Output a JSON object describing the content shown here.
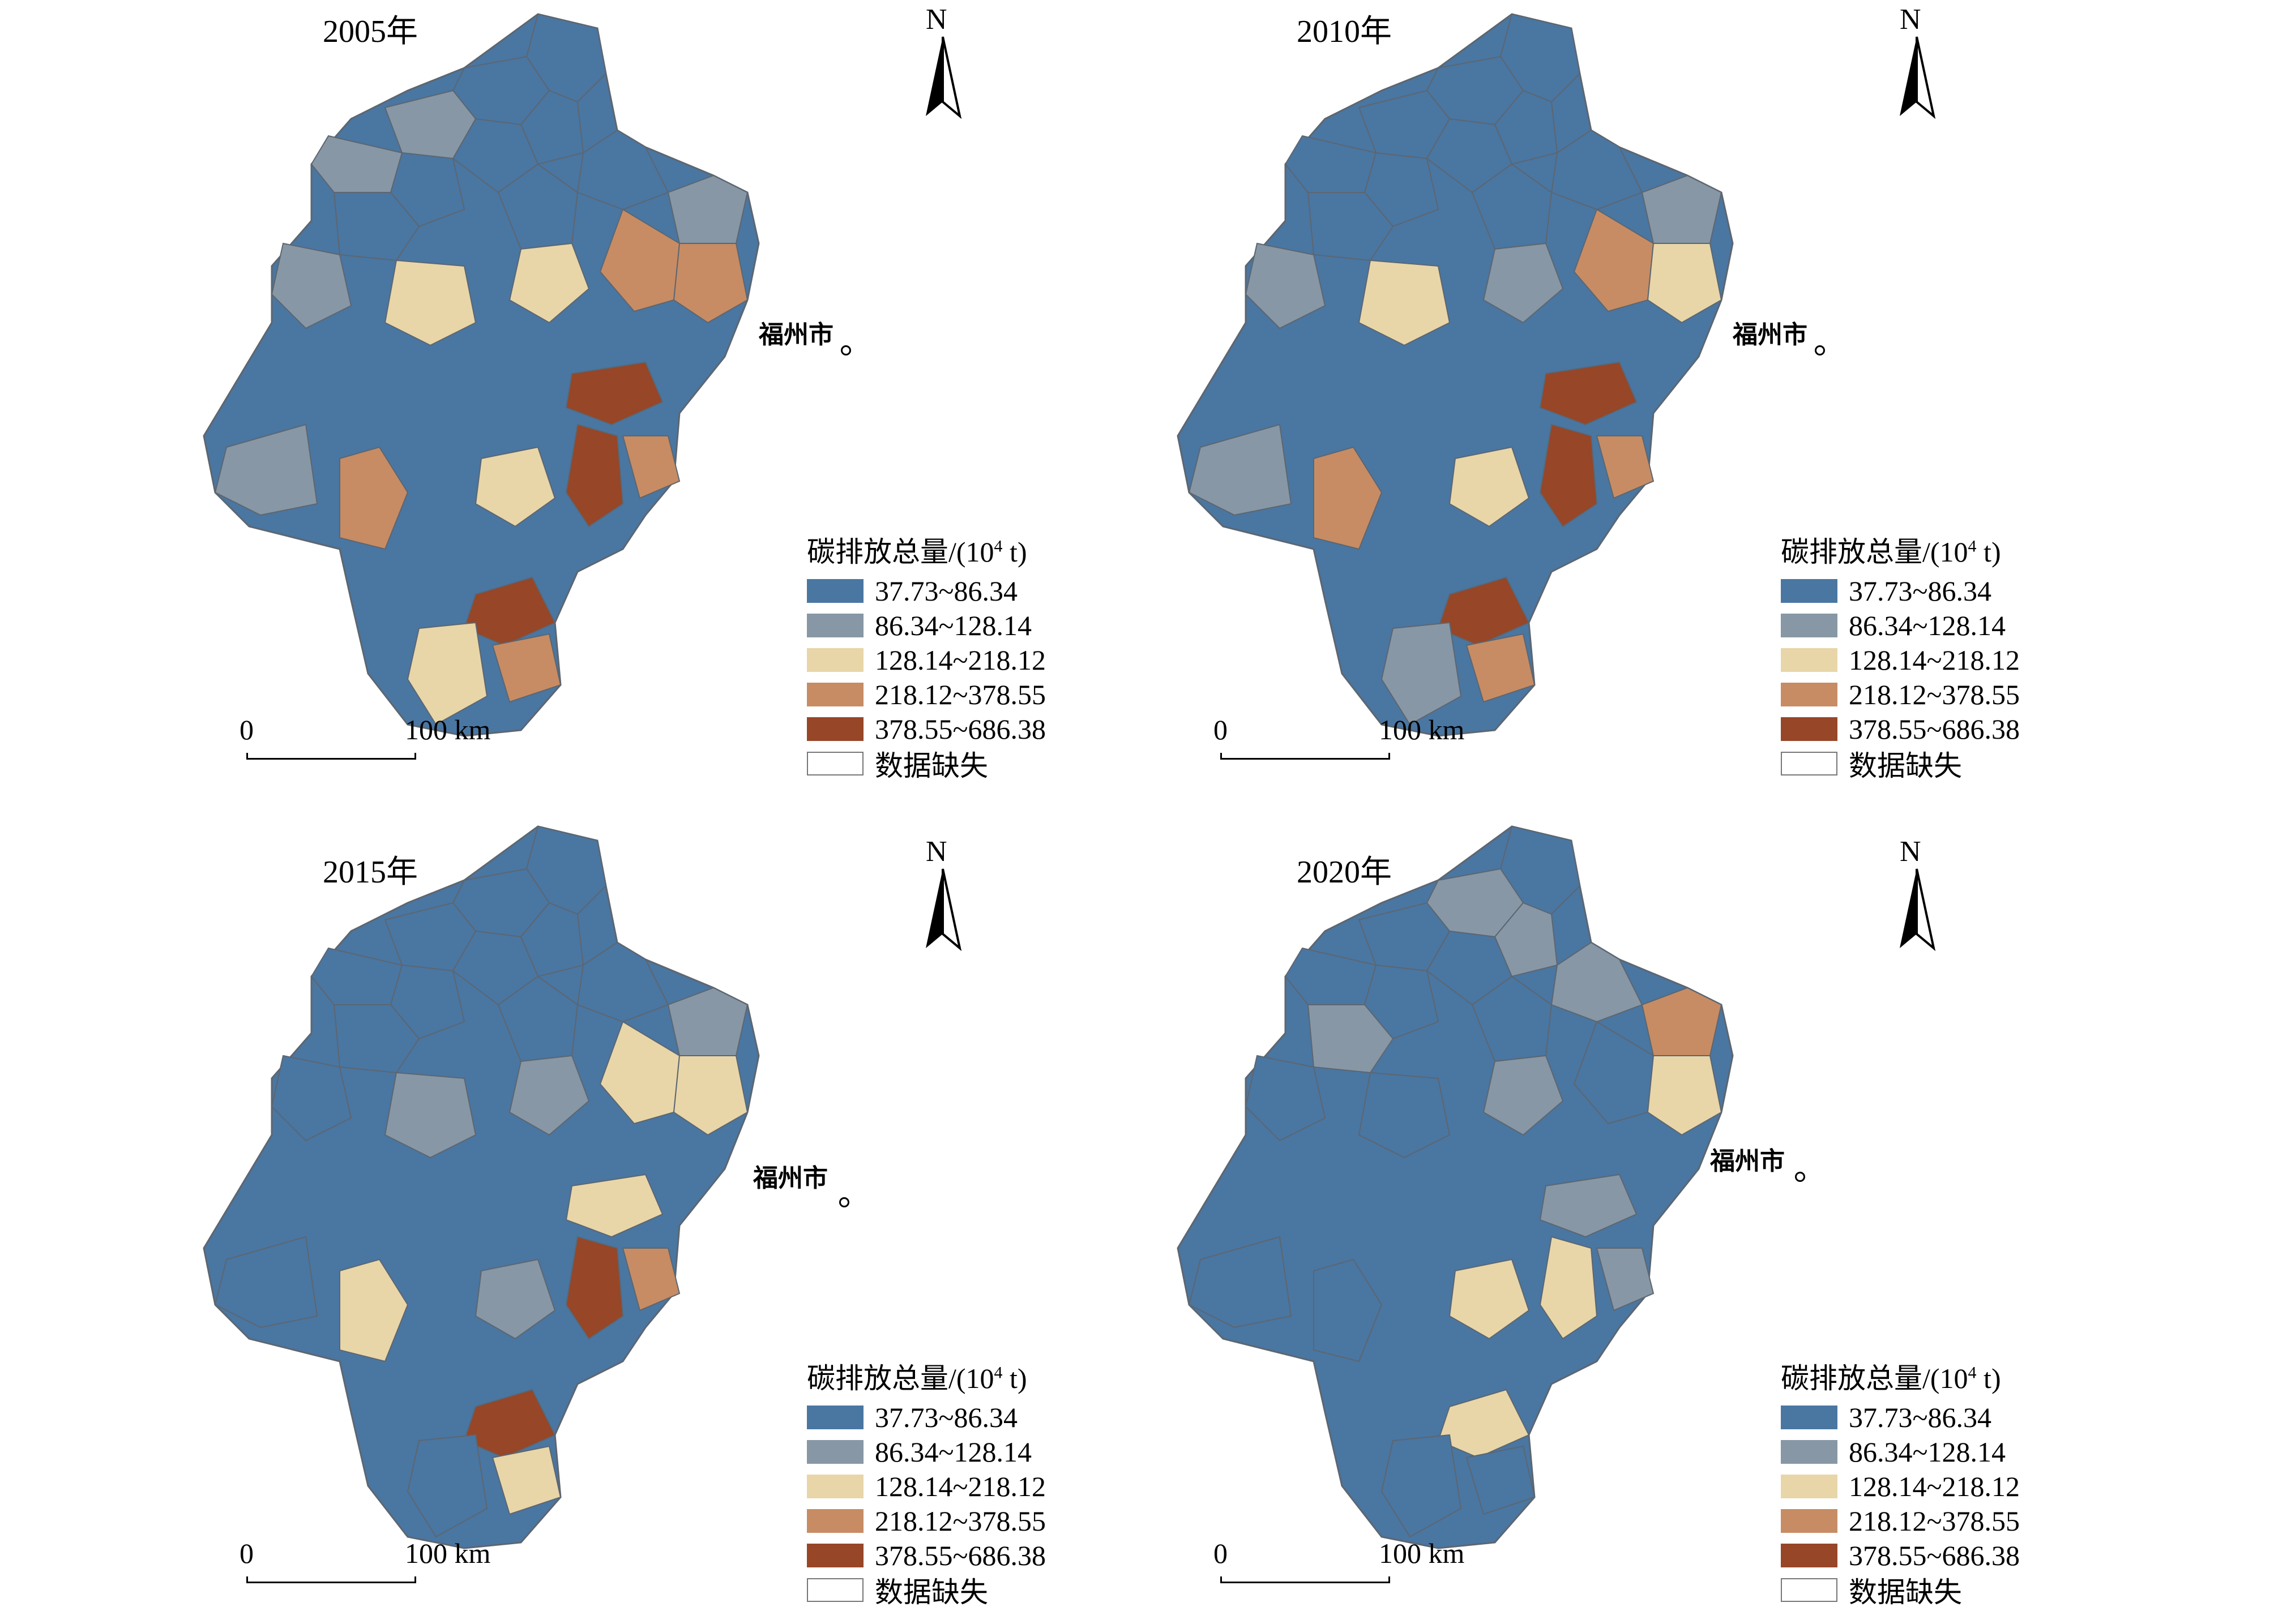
{
  "colors": {
    "class1": "#4a76a2",
    "class2": "#8797a5",
    "class3": "#e8d6a9",
    "class4": "#c78c64",
    "class5": "#974627",
    "missing": "#ffffff",
    "border": "#5c6670"
  },
  "panels": [
    {
      "year_label": "2005年",
      "north_label": "N",
      "city_label": "福州市",
      "legend_title": "碳排放总量/(10",
      "legend_sup": "4",
      "legend_unit": " t)",
      "scale_zero": "0",
      "scale_end": "100 km",
      "region_classes": [
        "class1",
        "class1",
        "class2",
        "class2",
        "class1",
        "class1",
        "class1",
        "class2",
        "class1",
        "class1",
        "class1",
        "class2",
        "class3",
        "class4",
        "class5",
        "class4",
        "class3",
        "class4",
        "class5",
        "class3",
        "class4",
        "class5",
        "class4",
        "class3",
        "class2"
      ]
    },
    {
      "year_label": "2010年",
      "north_label": "N",
      "city_label": "福州市",
      "legend_title": "碳排放总量/(10",
      "legend_sup": "4",
      "legend_unit": " t)",
      "scale_zero": "0",
      "scale_end": "100 km",
      "region_classes": [
        "class1",
        "class1",
        "class1",
        "class1",
        "class1",
        "class1",
        "class1",
        "class2",
        "class1",
        "class1",
        "class1",
        "class2",
        "class2",
        "class4",
        "class5",
        "class3",
        "class3",
        "class4",
        "class5",
        "class3",
        "class4",
        "class5",
        "class4",
        "class2",
        "class2"
      ]
    },
    {
      "year_label": "2015年",
      "north_label": "N",
      "city_label": "福州市",
      "legend_title": "碳排放总量/(10",
      "legend_sup": "4",
      "legend_unit": " t)",
      "scale_zero": "0",
      "scale_end": "100 km",
      "region_classes": [
        "class1",
        "class1",
        "class1",
        "class1",
        "class1",
        "class1",
        "class1",
        "class2",
        "class1",
        "class1",
        "class1",
        "class1",
        "class2",
        "class3",
        "class3",
        "class3",
        "class2",
        "class3",
        "class5",
        "class2",
        "class4",
        "class5",
        "class3",
        "class1",
        "class1"
      ]
    },
    {
      "year_label": "2020年",
      "north_label": "N",
      "city_label": "福州市",
      "legend_title": "碳排放总量/(10",
      "legend_sup": "4",
      "legend_unit": " t)",
      "scale_zero": "0",
      "scale_end": "100 km",
      "region_classes": [
        "class1",
        "class2",
        "class1",
        "class1",
        "class2",
        "class1",
        "class2",
        "class4",
        "class1",
        "class1",
        "class2",
        "class1",
        "class2",
        "class1",
        "class2",
        "class3",
        "class1",
        "class1",
        "class3",
        "class3",
        "class2",
        "class3",
        "class1",
        "class1",
        "class1"
      ]
    }
  ],
  "legend_items": [
    {
      "label": "37.73~86.34",
      "class": "class1"
    },
    {
      "label": "86.34~128.14",
      "class": "class2"
    },
    {
      "label": "128.14~218.12",
      "class": "class3"
    },
    {
      "label": "218.12~378.55",
      "class": "class4"
    },
    {
      "label": "378.55~686.38",
      "class": "class5"
    },
    {
      "label": "数据缺失",
      "class": "missing"
    }
  ]
}
